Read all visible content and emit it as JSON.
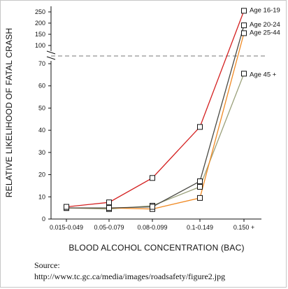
{
  "chart_data": {
    "type": "line",
    "title": "",
    "xlabel": "BLOOD ALCOHOL CONCENTRATION (BAC)",
    "ylabel": "RELATIVE LIKELIHOOD OF FATAL CRASH",
    "categories": [
      "0.015-0.049",
      "0.05-0.079",
      "0.08-0.099",
      "0.1-0.149",
      "0.150 +"
    ],
    "y_axis_lower_ticks": [
      "0",
      "10",
      "20",
      "30",
      "40",
      "50",
      "60",
      "70"
    ],
    "y_axis_upper_ticks": [
      "100",
      "150",
      "200",
      "250"
    ],
    "y_axis_break": "between 75 and 100 (dashed line at break)",
    "series": [
      {
        "name": "Age 16-19",
        "color": "#d42020",
        "values": [
          5.5,
          7.5,
          18.5,
          41.5,
          255
        ]
      },
      {
        "name": "Age 20-24",
        "color": "#4a4a44",
        "values": [
          5,
          5,
          5.5,
          17,
          190
        ]
      },
      {
        "name": "Age 25-44",
        "color": "#f08a24",
        "values": [
          5,
          5,
          4.5,
          9.5,
          155
        ]
      },
      {
        "name": "Age 45 +",
        "color": "#9aa07a",
        "values": [
          5,
          4.5,
          6,
          14.5,
          65.5
        ]
      }
    ],
    "grid": false,
    "legend": "labels at line ends (right)"
  },
  "source": {
    "label": "Source:",
    "url": "http://www.tc.gc.ca/media/images/roadsafety/figure2.jpg"
  }
}
